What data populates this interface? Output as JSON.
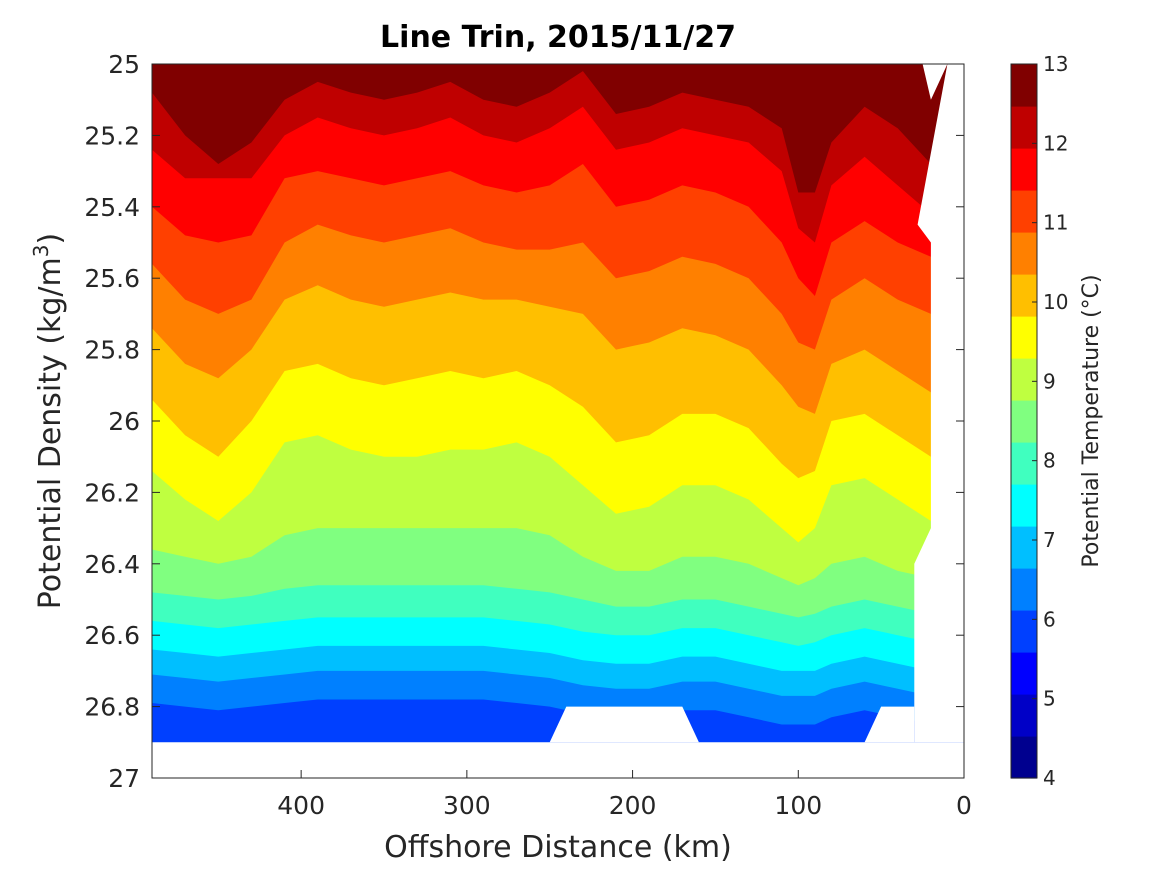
{
  "chart_data": {
    "type": "filled-contour",
    "title": "Line Trin, 2015/11/27",
    "xlabel": "Offshore Distance (km)",
    "ylabel": "Potential Density (kg/m",
    "ylabel_sup": "3",
    "ylabel_close": ")",
    "xlim": [
      490,
      0
    ],
    "ylim": [
      25,
      27
    ],
    "x_ticks": [
      400,
      300,
      200,
      100,
      0
    ],
    "x_tick_labels": [
      "400",
      "300",
      "200",
      "100",
      "0"
    ],
    "y_ticks": [
      25,
      25.2,
      25.4,
      25.6,
      25.8,
      26,
      26.2,
      26.4,
      26.6,
      26.8,
      27
    ],
    "y_tick_labels": [
      "25",
      "25.2",
      "25.4",
      "25.6",
      "25.8",
      "26",
      "26.2",
      "26.4",
      "26.6",
      "26.8",
      "27"
    ],
    "colorbar": {
      "label": "Potential Temperature (°C)",
      "range": [
        4,
        13
      ],
      "level_step": 0.5,
      "ticks": [
        4,
        5,
        6,
        7,
        8,
        9,
        10,
        11,
        12,
        13
      ],
      "tick_labels": [
        "4",
        "5",
        "6",
        "7",
        "8",
        "9",
        "10",
        "11",
        "12",
        "13"
      ],
      "colors": [
        "#00008f",
        "#0000c7",
        "#0000ff",
        "#0040ff",
        "#0080ff",
        "#00bfff",
        "#00ffff",
        "#40ffbf",
        "#80ff80",
        "#bfff40",
        "#ffff00",
        "#ffbf00",
        "#ff8000",
        "#ff4000",
        "#ff0000",
        "#bf0000",
        "#800000"
      ]
    },
    "isopycnal_x": [
      490,
      470,
      450,
      430,
      410,
      390,
      370,
      350,
      330,
      310,
      290,
      270,
      250,
      230,
      210,
      190,
      170,
      150,
      130,
      110,
      100,
      90,
      80,
      60,
      40,
      20
    ],
    "isotherms": [
      {
        "t": 12.5,
        "depth": [
          25.0,
          25.0,
          25.0,
          25.0,
          25.0,
          25.0,
          25.0,
          25.0,
          25.0,
          25.0,
          25.0,
          25.0,
          25.0,
          25.0,
          25.0,
          25.0,
          25.0,
          25.0,
          25.0,
          25.0,
          25.0,
          25.0,
          25.0,
          25.0,
          25.0,
          25.0
        ]
      },
      {
        "t": 12,
        "depth": [
          25.04,
          25.12,
          25.18,
          25.12,
          25.0,
          25.0,
          25.0,
          25.0,
          25.0,
          25.0,
          25.0,
          25.0,
          25.0,
          25.0,
          25.0,
          25.0,
          25.0,
          25.0,
          25.0,
          25.0,
          25.12,
          25.18,
          25.08,
          25.0,
          25.0,
          25.0
        ]
      },
      {
        "t": 11.5,
        "depth": [
          25.08,
          25.2,
          25.28,
          25.22,
          25.1,
          25.05,
          25.08,
          25.1,
          25.08,
          25.05,
          25.1,
          25.12,
          25.08,
          25.02,
          25.14,
          25.12,
          25.08,
          25.1,
          25.12,
          25.18,
          25.36,
          25.36,
          25.22,
          25.12,
          25.18,
          25.28
        ]
      },
      {
        "t": 11,
        "depth": [
          25.24,
          25.32,
          25.32,
          25.32,
          25.2,
          25.15,
          25.18,
          25.2,
          25.18,
          25.15,
          25.2,
          25.22,
          25.18,
          25.12,
          25.24,
          25.22,
          25.18,
          25.2,
          25.22,
          25.3,
          25.46,
          25.5,
          25.34,
          25.26,
          25.34,
          25.42
        ]
      },
      {
        "t": 10.5,
        "depth": [
          25.4,
          25.48,
          25.5,
          25.48,
          25.32,
          25.3,
          25.32,
          25.34,
          25.32,
          25.3,
          25.34,
          25.36,
          25.34,
          25.28,
          25.4,
          25.38,
          25.34,
          25.36,
          25.4,
          25.5,
          25.6,
          25.65,
          25.5,
          25.44,
          25.5,
          25.54
        ]
      },
      {
        "t": 10,
        "depth": [
          25.56,
          25.66,
          25.7,
          25.66,
          25.5,
          25.45,
          25.48,
          25.5,
          25.48,
          25.46,
          25.5,
          25.52,
          25.52,
          25.5,
          25.6,
          25.58,
          25.54,
          25.56,
          25.6,
          25.7,
          25.78,
          25.8,
          25.66,
          25.6,
          25.66,
          25.7
        ]
      },
      {
        "t": 9.5,
        "depth": [
          25.74,
          25.84,
          25.88,
          25.8,
          25.66,
          25.62,
          25.66,
          25.68,
          25.66,
          25.64,
          25.66,
          25.66,
          25.68,
          25.7,
          25.8,
          25.78,
          25.74,
          25.76,
          25.8,
          25.9,
          25.96,
          25.98,
          25.84,
          25.8,
          25.86,
          25.92
        ]
      },
      {
        "t": 9,
        "depth": [
          25.94,
          26.04,
          26.1,
          26.0,
          25.86,
          25.84,
          25.88,
          25.9,
          25.88,
          25.86,
          25.88,
          25.86,
          25.9,
          25.96,
          26.06,
          26.04,
          25.98,
          25.98,
          26.02,
          26.12,
          26.16,
          26.14,
          26.0,
          25.98,
          26.04,
          26.1
        ]
      },
      {
        "t": 8.5,
        "depth": [
          26.14,
          26.22,
          26.28,
          26.2,
          26.06,
          26.04,
          26.08,
          26.1,
          26.1,
          26.08,
          26.08,
          26.06,
          26.1,
          26.18,
          26.26,
          26.24,
          26.18,
          26.18,
          26.22,
          26.3,
          26.34,
          26.3,
          26.18,
          26.16,
          26.22,
          26.28
        ]
      },
      {
        "t": 8,
        "depth": [
          26.36,
          26.38,
          26.4,
          26.38,
          26.32,
          26.3,
          26.3,
          26.3,
          26.3,
          26.3,
          26.3,
          26.3,
          26.32,
          26.38,
          26.42,
          26.42,
          26.38,
          26.38,
          26.4,
          26.44,
          26.46,
          26.44,
          26.4,
          26.38,
          26.42,
          26.44
        ]
      },
      {
        "t": 7.5,
        "depth": [
          26.48,
          26.49,
          26.5,
          26.49,
          26.47,
          26.46,
          26.46,
          26.46,
          26.46,
          26.46,
          26.46,
          26.47,
          26.48,
          26.5,
          26.52,
          26.52,
          26.5,
          26.5,
          26.52,
          26.54,
          26.55,
          26.54,
          26.52,
          26.5,
          26.52,
          26.54
        ]
      },
      {
        "t": 7,
        "depth": [
          26.56,
          26.57,
          26.58,
          26.57,
          26.56,
          26.55,
          26.55,
          26.55,
          26.55,
          26.55,
          26.55,
          26.56,
          26.57,
          26.59,
          26.6,
          26.6,
          26.58,
          26.58,
          26.6,
          26.62,
          26.63,
          26.62,
          26.6,
          26.58,
          26.6,
          26.62
        ]
      },
      {
        "t": 6.5,
        "depth": [
          26.64,
          26.65,
          26.66,
          26.65,
          26.64,
          26.63,
          26.63,
          26.63,
          26.63,
          26.63,
          26.63,
          26.64,
          26.65,
          26.67,
          26.68,
          26.68,
          26.66,
          26.66,
          26.68,
          26.7,
          26.7,
          26.7,
          26.68,
          26.66,
          26.68,
          26.7
        ]
      },
      {
        "t": 6,
        "depth": [
          26.71,
          26.72,
          26.73,
          26.72,
          26.71,
          26.7,
          26.7,
          26.7,
          26.7,
          26.7,
          26.7,
          26.71,
          26.72,
          26.74,
          26.75,
          26.75,
          26.73,
          26.73,
          26.75,
          26.77,
          26.77,
          26.77,
          26.75,
          26.73,
          26.75,
          26.77
        ]
      },
      {
        "t": 5.5,
        "depth": [
          26.79,
          26.8,
          26.81,
          26.8,
          26.79,
          26.78,
          26.78,
          26.78,
          26.78,
          26.78,
          26.78,
          26.79,
          26.8,
          26.82,
          26.83,
          26.83,
          26.81,
          26.81,
          26.83,
          26.85,
          26.85,
          26.85,
          26.83,
          26.81,
          26.83,
          26.85
        ]
      }
    ],
    "no_data_regions": [
      {
        "name": "deep-gap-offshore",
        "points": [
          [
            490,
            26.9
          ],
          [
            490,
            27
          ],
          [
            0,
            27
          ],
          [
            0,
            26.9
          ]
        ]
      },
      {
        "name": "deep-gap-midshelf",
        "points": [
          [
            250,
            26.9
          ],
          [
            240,
            26.8
          ],
          [
            170,
            26.8
          ],
          [
            160,
            26.9
          ]
        ]
      },
      {
        "name": "deep-gap-nearshore",
        "points": [
          [
            60,
            26.9
          ],
          [
            50,
            26.8
          ],
          [
            30,
            26.8
          ],
          [
            30,
            26.9
          ]
        ]
      },
      {
        "name": "nearshore-column",
        "points": [
          [
            30,
            26.8
          ],
          [
            30,
            26.4
          ],
          [
            20,
            26.3
          ],
          [
            20,
            25.5
          ],
          [
            28,
            25.45
          ],
          [
            10,
            25
          ],
          [
            0,
            25
          ],
          [
            0,
            26.9
          ],
          [
            30,
            26.9
          ]
        ]
      },
      {
        "name": "surface-notch",
        "points": [
          [
            25,
            25
          ],
          [
            20,
            25.1
          ],
          [
            10,
            25
          ]
        ]
      }
    ]
  }
}
